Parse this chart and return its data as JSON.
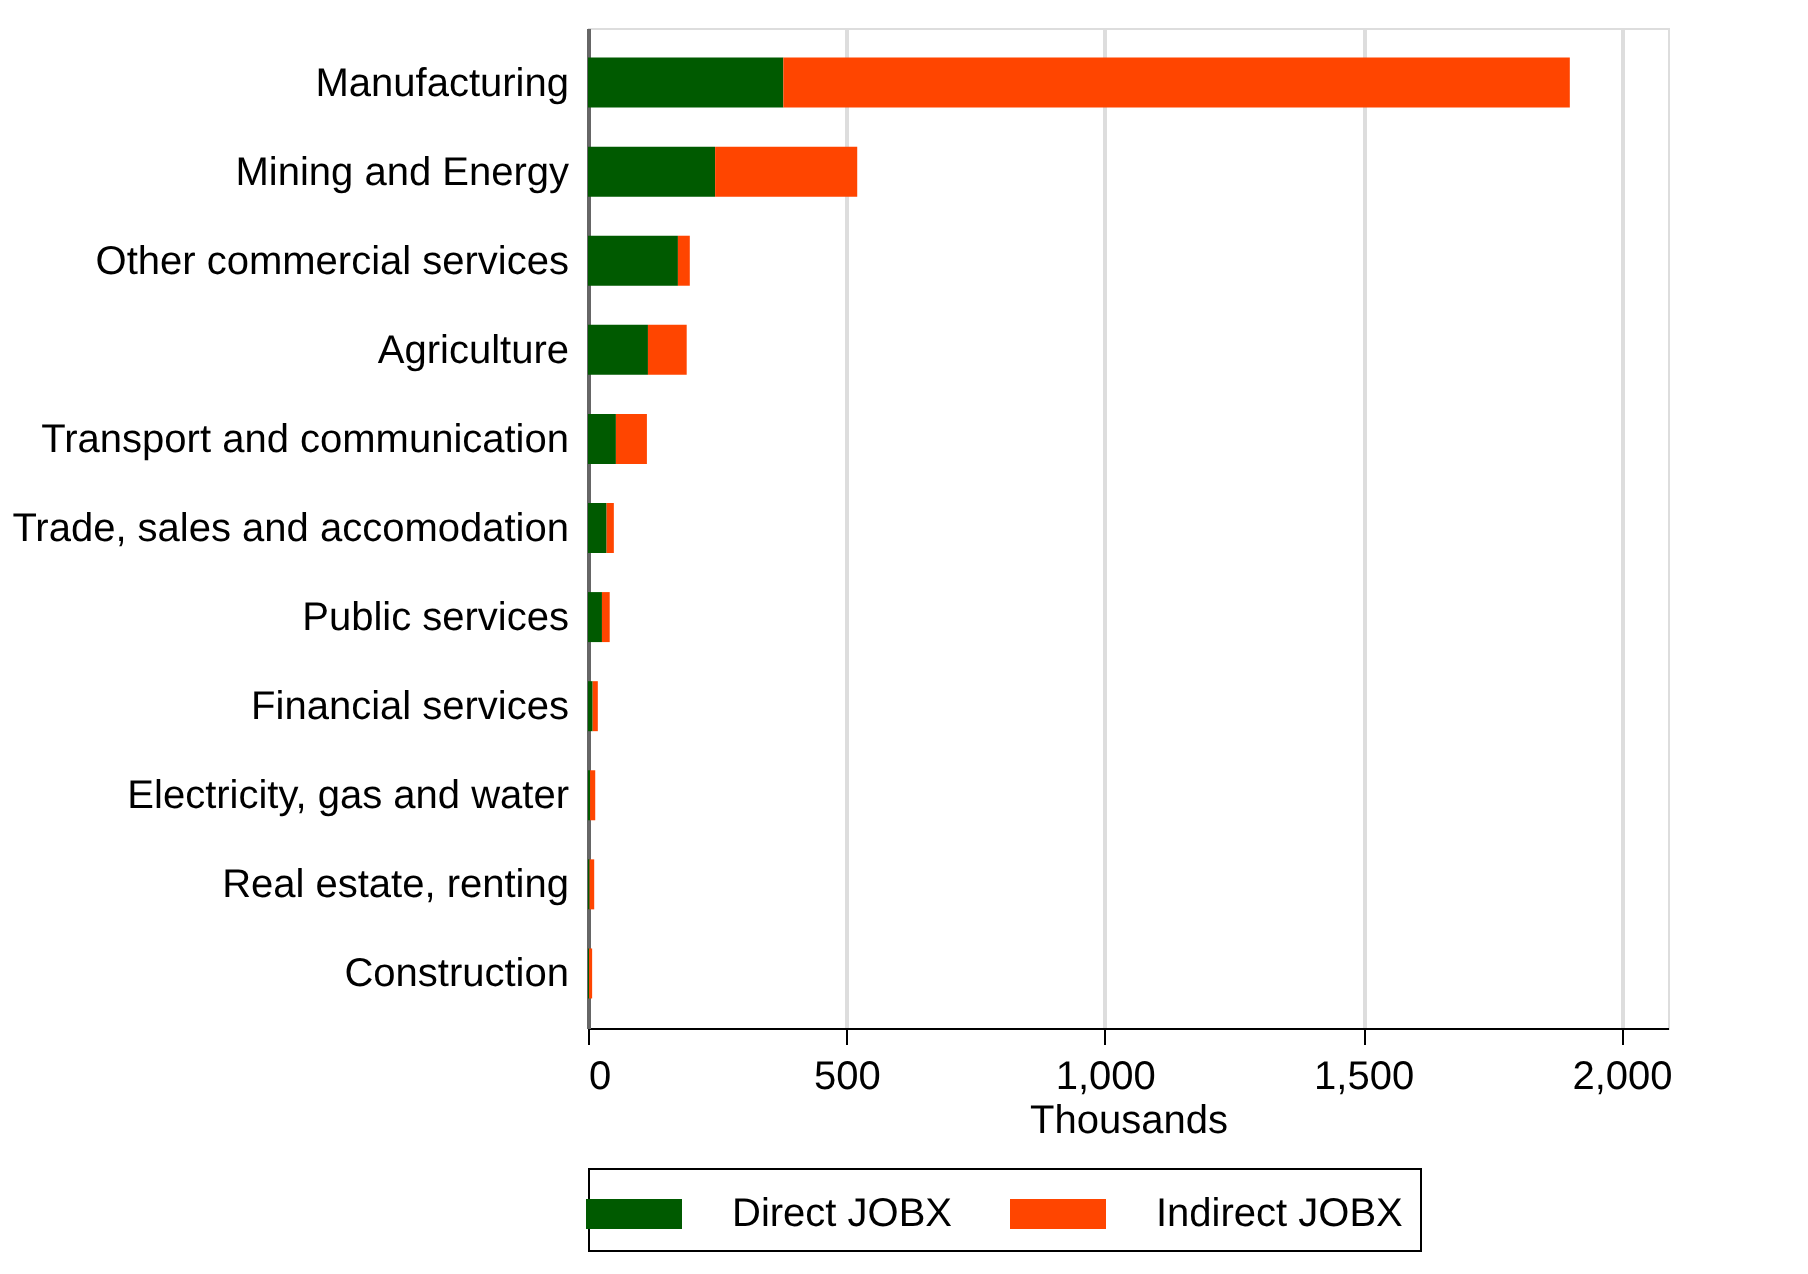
{
  "chart_data": {
    "type": "bar",
    "orientation": "horizontal",
    "stacked": true,
    "categories": [
      "Manufacturing",
      "Mining and Energy",
      "Other commercial services",
      "Agriculture",
      "Transport and communication",
      "Trade, sales and accomodation",
      "Public services",
      "Financial services",
      "Electricity, gas and water",
      "Real estate, renting",
      "Construction"
    ],
    "series": [
      {
        "name": "Direct JOBX",
        "color": "#005a00",
        "values": [
          378,
          246,
          174,
          116,
          54,
          36,
          27,
          9,
          4,
          3,
          2
        ]
      },
      {
        "name": "Indirect JOBX",
        "color": "#ff4500",
        "values": [
          1522,
          275,
          23,
          75,
          60,
          14,
          15,
          10,
          10,
          9,
          6
        ]
      }
    ],
    "xlabel": "Thousands",
    "xlim": [
      0,
      2090
    ],
    "xticks": [
      0,
      500,
      {
        "value": 1000,
        "label": "1,000"
      },
      {
        "value": 1500,
        "label": "1,500"
      },
      {
        "value": 2000,
        "label": "2,000"
      }
    ],
    "grid": "x",
    "legend": "bottom"
  }
}
